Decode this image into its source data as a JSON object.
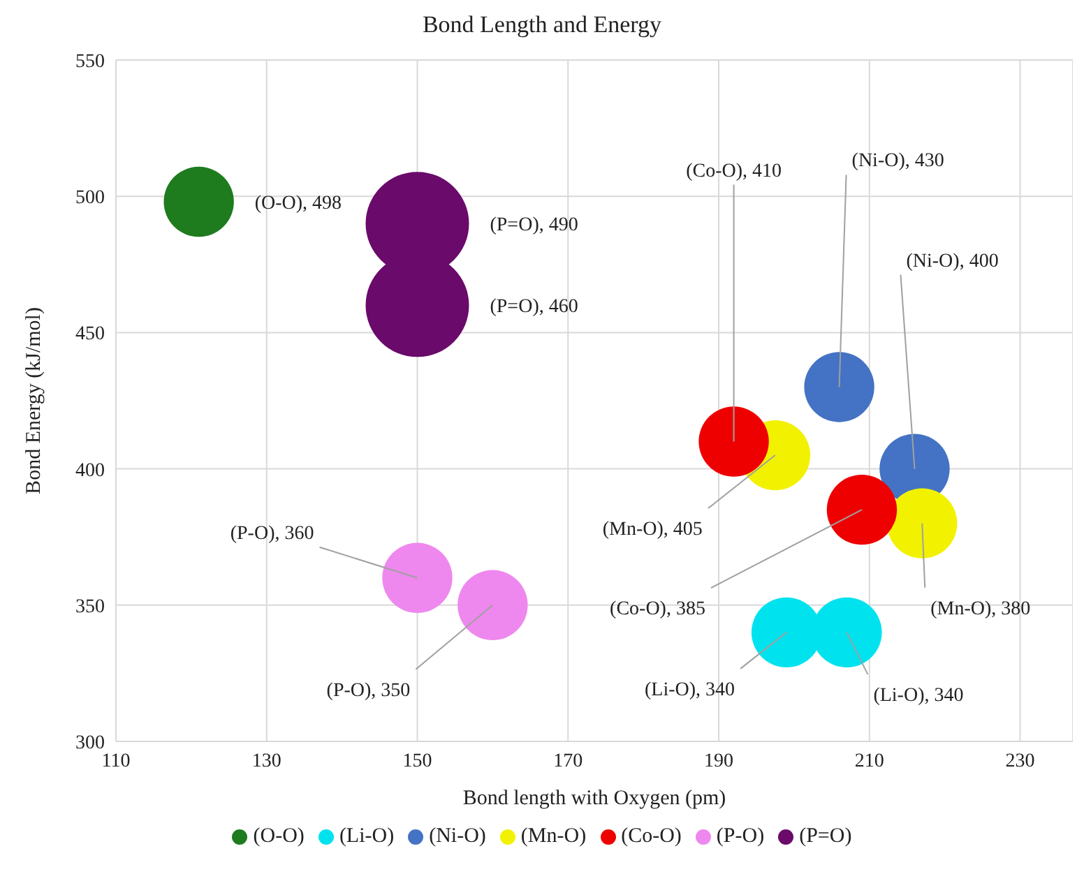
{
  "chart_data": {
    "type": "bubble",
    "title": "Bond Length and Energy",
    "xlabel": "Bond length with Oxygen (pm)",
    "ylabel": "Bond Energy (kJ/mol)",
    "xlim": [
      110,
      237
    ],
    "xticks": [
      110,
      130,
      150,
      170,
      190,
      210,
      230
    ],
    "ylim": [
      300,
      550
    ],
    "yticks": [
      300,
      350,
      400,
      450,
      500,
      550
    ],
    "grid": true,
    "legend": "bottom",
    "series": [
      {
        "name": "(O-O)",
        "color": "#1e7b1e",
        "x": [
          121
        ],
        "values": [
          498
        ],
        "sizes": [
          0.46
        ],
        "value_labels": [
          "(O-O), 498"
        ]
      },
      {
        "name": "(Li-O)",
        "color": "#00e3ee",
        "x": [
          199,
          207
        ],
        "values": [
          340,
          340
        ],
        "sizes": [
          0.46,
          0.46
        ],
        "value_labels": [
          "(Li-O), 340",
          "(Li-O), 340"
        ]
      },
      {
        "name": "(Ni-O)",
        "color": "#4472c4",
        "x": [
          206,
          216
        ],
        "values": [
          430,
          400
        ],
        "sizes": [
          0.46,
          0.46
        ],
        "value_labels": [
          "(Ni-O), 430",
          "(Ni-O), 400"
        ]
      },
      {
        "name": "(Mn-O)",
        "color": "#f2f200",
        "x": [
          197.5,
          217
        ],
        "values": [
          405,
          380
        ],
        "sizes": [
          0.46,
          0.46
        ],
        "value_labels": [
          "(Mn-O), 405",
          "(Mn-O), 380"
        ]
      },
      {
        "name": "(Co-O)",
        "color": "#ee0000",
        "x": [
          192,
          209
        ],
        "values": [
          410,
          385
        ],
        "sizes": [
          0.46,
          0.46
        ],
        "value_labels": [
          "(Co-O), 410",
          "(Co-O), 385"
        ]
      },
      {
        "name": "(P-O)",
        "color": "#ee88ee",
        "x": [
          150,
          160
        ],
        "values": [
          360,
          350
        ],
        "sizes": [
          0.46,
          0.46
        ],
        "value_labels": [
          "(P-O), 360",
          "(P-O), 350"
        ]
      },
      {
        "name": "(P=O)",
        "color": "#6a0a6a",
        "x": [
          150,
          150
        ],
        "values": [
          490,
          460
        ],
        "sizes": [
          1,
          1
        ],
        "value_labels": [
          "(P=O), 490",
          "(P=O), 460"
        ]
      }
    ]
  }
}
